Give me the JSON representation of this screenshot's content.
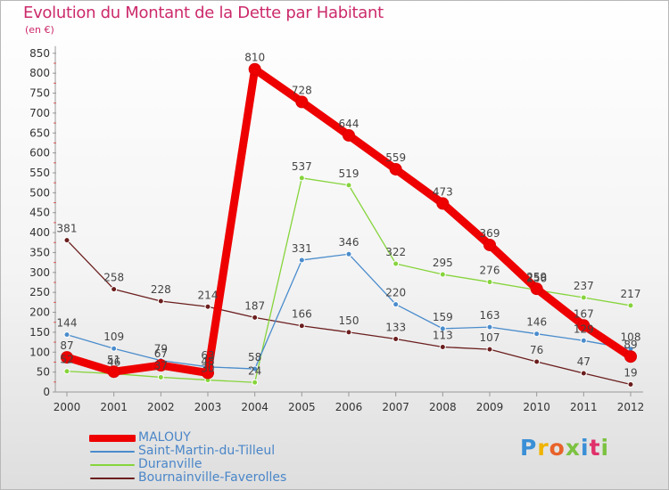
{
  "brand": {
    "text": "Proxiti",
    "colors": [
      "#3a8fd6",
      "#f0b400",
      "#e8622a",
      "#7cc242",
      "#3a8fd6",
      "#e0306a",
      "#7cc242"
    ]
  },
  "chart_data": {
    "type": "line",
    "title": "Evolution du Montant de la Dette par Habitant",
    "subtitle": "(en €)",
    "xlabel": "",
    "ylabel": "",
    "x": [
      "2000",
      "2001",
      "2002",
      "2003",
      "2004",
      "2005",
      "2006",
      "2007",
      "2008",
      "2009",
      "2010",
      "2011",
      "2012"
    ],
    "ylim": [
      0,
      850
    ],
    "yticks": [
      0,
      50,
      100,
      150,
      200,
      250,
      300,
      350,
      400,
      450,
      500,
      550,
      600,
      650,
      700,
      750,
      800,
      850
    ],
    "grid": false,
    "legend_position": "bottom-left",
    "series": [
      {
        "name": "Bournainville-Faverolles",
        "color": "#6b1e1e",
        "values": [
          381,
          258,
          228,
          214,
          187,
          166,
          150,
          133,
          113,
          107,
          76,
          47,
          19
        ],
        "labels": [
          "381",
          "258",
          "228",
          "214",
          "187",
          "166",
          "150",
          "133",
          "113",
          "107",
          "76",
          "47",
          "19"
        ]
      },
      {
        "name": "Duranville",
        "color": "#86d43b",
        "values": [
          52,
          46,
          37,
          30,
          24,
          537,
          519,
          322,
          295,
          276,
          256,
          237,
          217
        ],
        "labels": [
          "52",
          "46",
          "37",
          "30",
          "24",
          "537",
          "519",
          "322",
          "295",
          "276",
          "256",
          "237",
          "217"
        ]
      },
      {
        "name": "Saint-Martin-du-Tilleul",
        "color": "#4a8ccc",
        "values": [
          144,
          109,
          79,
          63,
          58,
          331,
          346,
          220,
          159,
          163,
          146,
          129,
          108
        ],
        "labels": [
          "144",
          "109",
          "79",
          "63",
          "58",
          "331",
          "346",
          "220",
          "159",
          "163",
          "146",
          "129",
          "108"
        ]
      },
      {
        "name": "MALOUY",
        "color": "#ee0000",
        "values": [
          87,
          51,
          67,
          48,
          810,
          728,
          644,
          559,
          473,
          369,
          259,
          167,
          89
        ],
        "labels": [
          "87",
          "51",
          "67",
          "48",
          "810",
          "728",
          "644",
          "559",
          "473",
          "369",
          "259",
          "167",
          "89"
        ]
      }
    ],
    "legend_order": [
      "MALOUY",
      "Saint-Martin-du-Tilleul",
      "Duranville",
      "Bournainville-Faverolles"
    ]
  }
}
